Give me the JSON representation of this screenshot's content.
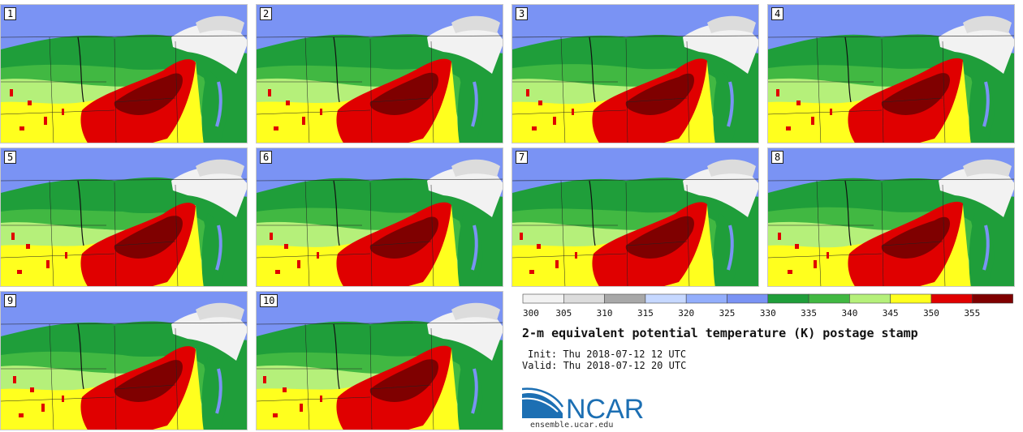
{
  "panels": [
    {
      "label": "1"
    },
    {
      "label": "2"
    },
    {
      "label": "3"
    },
    {
      "label": "4"
    },
    {
      "label": "5"
    },
    {
      "label": "6"
    },
    {
      "label": "7"
    },
    {
      "label": "8"
    },
    {
      "label": "9"
    },
    {
      "label": "10"
    }
  ],
  "colorbar": {
    "ticks": [
      "300",
      "305",
      "310",
      "315",
      "320",
      "325",
      "330",
      "335",
      "340",
      "345",
      "350",
      "355"
    ],
    "colors": [
      "#f2f2f2",
      "#dcdcdc",
      "#a8a8a8",
      "#c6d8ff",
      "#93aefc",
      "#7a93f4",
      "#1f9e3a",
      "#41b842",
      "#b5f07a",
      "#ffff1e",
      "#e00000",
      "#7f0000"
    ]
  },
  "title": "2-m equivalent potential temperature (K) postage stamp",
  "init": "Init: Thu 2018-07-12 12 UTC",
  "valid": "Valid: Thu 2018-07-12 20 UTC",
  "logo": {
    "name": "NCAR",
    "url": "ensemble.ucar.edu",
    "brand_color": "#1c6fb3"
  }
}
